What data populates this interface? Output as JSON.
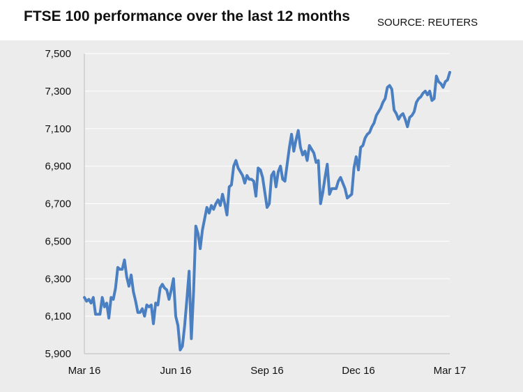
{
  "header": {
    "title": "FTSE 100 performance over the last 12 months",
    "source": "SOURCE: REUTERS"
  },
  "colors": {
    "line": "#4a7fc1",
    "grid": "#ffffff",
    "background": "#ececec"
  },
  "chart_data": {
    "type": "line",
    "title": "FTSE 100 performance over the last 12 months",
    "xlabel": "",
    "ylabel": "",
    "ylim": [
      5900,
      7500
    ],
    "y_ticks": [
      "7,500",
      "7,300",
      "7,100",
      "6,900",
      "6,700",
      "6,500",
      "6,300",
      "6,100",
      "5,900"
    ],
    "x_ticks": [
      "Mar 16",
      "Jun 16",
      "Sep 16",
      "Dec 16",
      "Mar 17"
    ],
    "grid": true,
    "legend": "none",
    "series": [
      {
        "values": [
          6200,
          6180,
          6190,
          6170,
          6200,
          6110,
          6110,
          6110,
          6200,
          6150,
          6170,
          6090,
          6200,
          6190,
          6250,
          6360,
          6350,
          6350,
          6400,
          6310,
          6260,
          6320,
          6230,
          6180,
          6120,
          6120,
          6140,
          6100,
          6160,
          6150,
          6160,
          6060,
          6170,
          6160,
          6250,
          6270,
          6250,
          6240,
          6190,
          6240,
          6300,
          6100,
          6050,
          5920,
          5940,
          6050,
          6190,
          6340,
          5980,
          6230,
          6580,
          6540,
          6460,
          6560,
          6620,
          6680,
          6650,
          6690,
          6670,
          6700,
          6720,
          6690,
          6750,
          6700,
          6640,
          6790,
          6800,
          6900,
          6930,
          6890,
          6870,
          6850,
          6810,
          6850,
          6830,
          6830,
          6820,
          6740,
          6890,
          6880,
          6840,
          6760,
          6680,
          6700,
          6850,
          6870,
          6790,
          6870,
          6900,
          6830,
          6820,
          6910,
          7000,
          7070,
          6980,
          7040,
          7090,
          7000,
          6960,
          6980,
          6930,
          7010,
          6990,
          6970,
          6920,
          6930,
          6700,
          6760,
          6840,
          6910,
          6750,
          6780,
          6780,
          6780,
          6820,
          6840,
          6810,
          6780,
          6730,
          6740,
          6750,
          6890,
          6950,
          6880,
          7000,
          7010,
          7050,
          7070,
          7080,
          7110,
          7130,
          7170,
          7190,
          7210,
          7240,
          7260,
          7320,
          7330,
          7310,
          7200,
          7180,
          7150,
          7170,
          7180,
          7150,
          7110,
          7160,
          7170,
          7190,
          7240,
          7260,
          7270,
          7290,
          7300,
          7280,
          7300,
          7250,
          7260,
          7380,
          7350,
          7340,
          7320,
          7350,
          7360,
          7400
        ]
      }
    ]
  }
}
